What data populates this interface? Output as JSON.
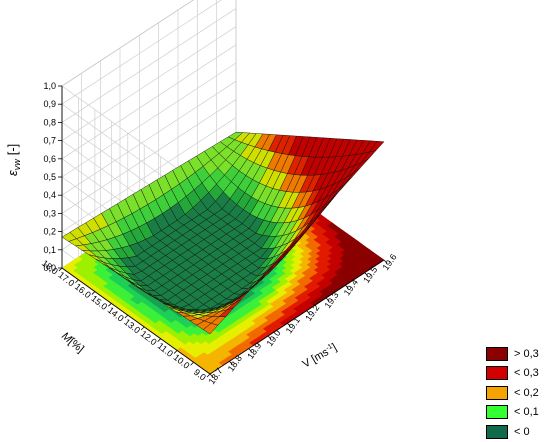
{
  "chart_data": {
    "type": "surface3d",
    "zlabel_main": "ε",
    "zlabel_sub": "vw",
    "zlabel_unit": "[-]",
    "xlabel_main": "M",
    "xlabel_unit": "[%]",
    "ylabel_main": "V",
    "ylabel_unit_pre": "[ms",
    "ylabel_unit_sup": "-1",
    "ylabel_unit_post": "]",
    "z_ticks": [
      "0,0",
      "0,1",
      "0,2",
      "0,3",
      "0,4",
      "0,5",
      "0,6",
      "0,7",
      "0,8",
      "0,9",
      "1,0"
    ],
    "m_ticks": [
      "18.0",
      "17.0",
      "16.0",
      "15.0",
      "14.0",
      "13.0",
      "12.0",
      "11.0",
      "10.0",
      "9.0"
    ],
    "v_ticks": [
      "18.7",
      "18.8",
      "18.9",
      "19.0",
      "19.1",
      "19.2",
      "19.3",
      "19.4",
      "19.5",
      "19.6"
    ],
    "zlim": [
      0,
      1.0
    ],
    "mlim": [
      9.0,
      18.0
    ],
    "vlim": [
      18.7,
      19.6
    ],
    "surface_corners": {
      "m18_v18_7": 0.17,
      "m9_v18_7": 0.22,
      "m18_v19_6": 0.12,
      "m9_v19_6": 0.65,
      "minimum": 0.0
    },
    "legend": [
      {
        "label": "> 0,3",
        "color": "#8b0000"
      },
      {
        "label": "< 0,3",
        "color": "#d20000"
      },
      {
        "label": "< 0,2",
        "color": "#f5a300"
      },
      {
        "label": "< 0,1",
        "color": "#33ff33"
      },
      {
        "label": "< 0",
        "color": "#0f6b4a"
      }
    ]
  }
}
